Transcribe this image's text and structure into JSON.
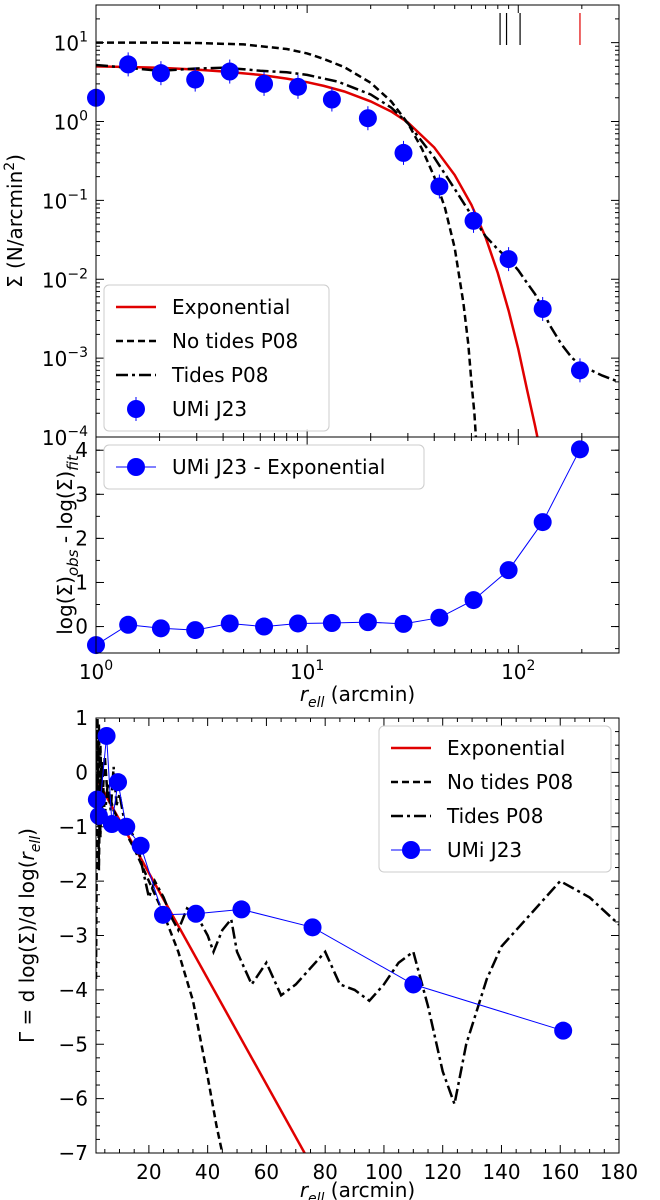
{
  "chart_data": [
    {
      "panel": "top",
      "type": "line",
      "xscale": "log",
      "yscale": "log",
      "xlim": [
        1,
        300
      ],
      "ylim": [
        0.0001,
        30
      ],
      "xlabel": "",
      "ylabel": "Σ (N/arcmin²)",
      "ytick_labels": [
        {
          "base": "10",
          "exp": "1"
        },
        {
          "base": "10",
          "exp": "0"
        },
        {
          "base": "10",
          "exp": "−1"
        },
        {
          "base": "10",
          "exp": "−2"
        },
        {
          "base": "10",
          "exp": "−3"
        },
        {
          "base": "10",
          "exp": "−4"
        }
      ],
      "ytick_values": [
        10,
        1,
        0.1,
        0.01,
        0.001,
        0.0001
      ],
      "legend_position": "lower-left",
      "legend": [
        "Exponential",
        "No tides P08",
        "Tides P08",
        "UMi J23"
      ],
      "top_markers": [
        {
          "x": 82,
          "color": "#000000"
        },
        {
          "x": 88,
          "color": "#000000"
        },
        {
          "x": 102,
          "color": "#000000"
        },
        {
          "x": 196,
          "color": "#e00000"
        }
      ],
      "series": [
        {
          "name": "Exponential",
          "style": "solid",
          "color": "#e00000",
          "x": [
            1,
            1.5,
            2,
            3,
            4,
            6,
            8,
            10,
            12,
            15,
            20,
            25,
            30,
            40,
            50,
            60,
            70,
            80,
            90,
            100,
            110,
            120,
            130
          ],
          "y": [
            5.0,
            4.9,
            4.8,
            4.55,
            4.3,
            3.9,
            3.5,
            3.15,
            2.83,
            2.4,
            1.8,
            1.34,
            0.97,
            0.47,
            0.21,
            0.088,
            0.034,
            0.012,
            0.004,
            0.0013,
            0.0004,
            0.00014,
            5e-05
          ]
        },
        {
          "name": "No tides P08",
          "style": "dashed",
          "color": "#000000",
          "x": [
            1,
            2,
            3,
            5,
            8,
            10,
            12,
            15,
            20,
            25,
            30,
            35,
            40,
            45,
            50,
            55,
            58,
            60,
            62,
            63
          ],
          "y": [
            10,
            10,
            9.9,
            9.5,
            8.3,
            7.3,
            6.2,
            4.9,
            3.1,
            1.8,
            0.95,
            0.45,
            0.2,
            0.08,
            0.025,
            0.005,
            0.0015,
            0.0005,
            0.0002,
            0.0001
          ]
        },
        {
          "name": "Tides P08",
          "style": "dashdot",
          "color": "#000000",
          "x": [
            1,
            1.3,
            2,
            3,
            4,
            5,
            6,
            8,
            10,
            14,
            20,
            25,
            30,
            40,
            50,
            60,
            70,
            80,
            90,
            100,
            110,
            120,
            130,
            140,
            160,
            180,
            200,
            250,
            300
          ],
          "y": [
            5.2,
            4.9,
            4.4,
            4.7,
            4.8,
            4.6,
            4.4,
            4.2,
            3.9,
            3.2,
            2.2,
            1.5,
            0.95,
            0.35,
            0.14,
            0.065,
            0.035,
            0.024,
            0.018,
            0.013,
            0.009,
            0.0065,
            0.0043,
            0.0027,
            0.0015,
            0.001,
            0.0008,
            0.0006,
            0.0005
          ]
        },
        {
          "name": "UMi J23",
          "style": "markers",
          "color": "#0000ff",
          "x": [
            1.0,
            1.42,
            2.03,
            2.95,
            4.3,
            6.25,
            9.05,
            13.1,
            19.4,
            28.6,
            42.3,
            61.4,
            90.0,
            130.5,
            196.0
          ],
          "y": [
            2.0,
            5.3,
            4.1,
            3.4,
            4.3,
            3.0,
            2.75,
            1.9,
            1.1,
            0.4,
            0.15,
            0.055,
            0.018,
            0.0042,
            0.0007
          ]
        }
      ]
    },
    {
      "panel": "middle",
      "type": "line",
      "xscale": "log",
      "xlim": [
        1,
        300
      ],
      "ylim": [
        -0.6,
        4.3
      ],
      "xlabel": "r_ell (arcmin)",
      "ylabel": "log(Σ)_obs - log(Σ)_fit",
      "xtick_labels": [
        {
          "base": "10",
          "exp": "0"
        },
        {
          "base": "10",
          "exp": "1"
        },
        {
          "base": "10",
          "exp": "2"
        }
      ],
      "xtick_values": [
        1,
        10,
        100
      ],
      "ytick_values": [
        0,
        1,
        2,
        3,
        4
      ],
      "legend_position": "top-left",
      "legend": [
        "UMi J23 - Exponential"
      ],
      "series": [
        {
          "name": "UMi J23 - Exponential",
          "style": "line+markers",
          "color": "#0000ff",
          "x": [
            1.0,
            1.42,
            2.03,
            2.95,
            4.3,
            6.25,
            9.05,
            13.1,
            19.4,
            28.6,
            42.3,
            61.4,
            90.0,
            130.5,
            196.0
          ],
          "y": [
            -0.42,
            0.04,
            -0.04,
            -0.08,
            0.07,
            0.0,
            0.07,
            0.08,
            0.1,
            0.06,
            0.2,
            0.6,
            1.28,
            2.37,
            4.02
          ]
        }
      ]
    },
    {
      "panel": "bottom",
      "type": "line",
      "xlim": [
        2,
        180
      ],
      "ylim": [
        -7,
        1
      ],
      "xlabel": "r_ell (arcmin)",
      "ylabel": "Γ = d log(Σ)/d log(r_ell)",
      "xtick_values": [
        20,
        40,
        60,
        80,
        100,
        120,
        140,
        160,
        180
      ],
      "ytick_values": [
        1,
        0,
        -1,
        -2,
        -3,
        -4,
        -5,
        -6,
        -7
      ],
      "ytick_labels": [
        "1",
        "0",
        "−1",
        "−2",
        "−3",
        "−4",
        "−5",
        "−6",
        "−7"
      ],
      "legend_position": "top-right",
      "legend": [
        "Exponential",
        "No tides P08",
        "Tides P08",
        "UMi J23"
      ],
      "series": [
        {
          "name": "Exponential",
          "style": "solid",
          "color": "#e00000",
          "x": [
            2,
            73
          ],
          "y": [
            -0.1,
            -7.0
          ]
        },
        {
          "name": "No tides P08",
          "style": "dashed",
          "color": "#000000",
          "x": [
            2.0,
            2.5,
            3.0,
            3.5,
            4.0,
            5.0,
            6.0,
            7.0,
            8.0,
            10,
            12,
            15,
            20,
            25,
            30,
            35,
            40,
            43,
            45
          ],
          "y": [
            -3.8,
            1.0,
            -1.8,
            0.5,
            -0.7,
            0.3,
            -0.5,
            -0.5,
            -0.7,
            -0.9,
            -1.1,
            -1.4,
            -2.0,
            -2.6,
            -3.3,
            -4.2,
            -5.6,
            -6.5,
            -7.0
          ]
        },
        {
          "name": "Tides P08",
          "style": "dashdot",
          "color": "#000000",
          "x": [
            2.0,
            2.5,
            3.0,
            3.5,
            4.0,
            5.0,
            6.0,
            7.0,
            8.0,
            9.0,
            10,
            12,
            14,
            16,
            18,
            20,
            22,
            25,
            28,
            30,
            33,
            36,
            40,
            42,
            45,
            48,
            50,
            55,
            60,
            65,
            70,
            75,
            80,
            85,
            90,
            95,
            100,
            105,
            110,
            115,
            120,
            124,
            128,
            135,
            140,
            150,
            160,
            170,
            180
          ],
          "y": [
            0.7,
            -0.8,
            0.9,
            -1.2,
            0.2,
            -0.8,
            -0.2,
            -0.7,
            0.1,
            -0.6,
            -0.4,
            -1.0,
            -1.1,
            -1.3,
            -1.8,
            -2.3,
            -2.0,
            -2.3,
            -2.7,
            -2.9,
            -2.5,
            -2.6,
            -3.0,
            -3.3,
            -2.9,
            -2.7,
            -3.3,
            -3.9,
            -3.5,
            -4.1,
            -3.9,
            -3.6,
            -3.3,
            -3.9,
            -4.0,
            -4.2,
            -3.9,
            -3.5,
            -3.3,
            -4.3,
            -5.5,
            -6.1,
            -5.0,
            -3.8,
            -3.2,
            -2.6,
            -2.0,
            -2.3,
            -2.8
          ]
        },
        {
          "name": "UMi J23",
          "style": "line+markers",
          "color": "#0000ff",
          "x": [
            2.3,
            3.0,
            5.6,
            7.4,
            9.5,
            12.3,
            17.2,
            24.8,
            36.0,
            51.5,
            75.7,
            110.0,
            161.0
          ],
          "y": [
            -0.5,
            -0.8,
            0.67,
            -0.95,
            -0.18,
            -1.0,
            -1.35,
            -2.62,
            -2.6,
            -2.52,
            -2.85,
            -3.9,
            -4.75
          ]
        }
      ]
    }
  ]
}
